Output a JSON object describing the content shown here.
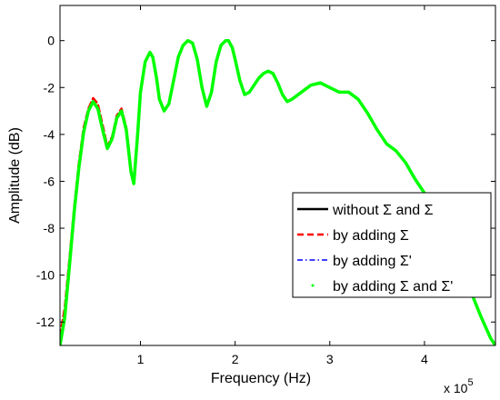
{
  "chart_data": {
    "type": "line",
    "xlabel": "Frequency (Hz)",
    "ylabel": "Amplitude (dB)",
    "x_multiplier": "x 10",
    "x_multiplier_exp": "5",
    "xlim": [
      0.15,
      4.75
    ],
    "ylim": [
      -13,
      1.5
    ],
    "xticks": [
      1,
      2,
      3,
      4
    ],
    "yticks": [
      0,
      -2,
      -4,
      -6,
      -8,
      -10,
      -12
    ],
    "grid": false,
    "legend_position": "lower-right",
    "colors": {
      "black": "#000000",
      "red": "#ff0000",
      "blue": "#0000ff",
      "green": "#00ff00"
    },
    "series": [
      {
        "name": "without Σ and Σ",
        "style": "solid",
        "color": "#000000",
        "x": [
          0.15,
          0.2,
          0.25,
          0.3,
          0.35,
          0.4,
          0.45,
          0.5,
          0.55,
          0.6,
          0.65,
          0.7,
          0.75,
          0.8,
          0.85,
          0.9,
          0.93,
          0.97,
          1.0,
          1.05,
          1.1,
          1.13,
          1.17,
          1.2,
          1.25,
          1.3,
          1.35,
          1.4,
          1.45,
          1.5,
          1.55,
          1.6,
          1.65,
          1.7,
          1.75,
          1.8,
          1.85,
          1.9,
          1.93,
          1.97,
          2.0,
          2.05,
          2.1,
          2.15,
          2.2,
          2.25,
          2.3,
          2.35,
          2.4,
          2.45,
          2.5,
          2.55,
          2.6,
          2.7,
          2.8,
          2.9,
          3.0,
          3.1,
          3.2,
          3.3,
          3.4,
          3.5,
          3.6,
          3.7,
          3.8,
          3.9,
          4.0,
          4.1,
          4.2,
          4.3,
          4.4,
          4.5,
          4.6,
          4.7,
          4.75
        ],
        "y": [
          -13.0,
          -11.8,
          -9.6,
          -7.3,
          -5.4,
          -3.9,
          -3.0,
          -2.6,
          -2.9,
          -3.8,
          -4.6,
          -4.2,
          -3.3,
          -3.0,
          -3.8,
          -5.6,
          -6.1,
          -4.0,
          -2.2,
          -0.9,
          -0.5,
          -0.7,
          -1.6,
          -2.5,
          -3.0,
          -2.7,
          -1.7,
          -0.7,
          -0.2,
          0.0,
          -0.1,
          -0.8,
          -2.0,
          -2.8,
          -2.2,
          -0.9,
          -0.2,
          0.0,
          0.0,
          -0.3,
          -0.8,
          -1.7,
          -2.3,
          -2.2,
          -1.9,
          -1.6,
          -1.4,
          -1.3,
          -1.4,
          -1.8,
          -2.3,
          -2.6,
          -2.5,
          -2.2,
          -1.9,
          -1.8,
          -2.0,
          -2.2,
          -2.2,
          -2.5,
          -3.1,
          -3.8,
          -4.4,
          -4.7,
          -5.2,
          -5.9,
          -6.5,
          -7.0,
          -7.8,
          -8.8,
          -9.8,
          -10.8,
          -11.8,
          -12.7,
          -13.0
        ]
      },
      {
        "name": "by adding Σ",
        "style": "dashed",
        "color": "#ff0000",
        "x": [
          0.15,
          0.2,
          0.25,
          0.3,
          0.35,
          0.4,
          0.45,
          0.5,
          0.55,
          0.6,
          0.65,
          0.7,
          0.75,
          0.8,
          0.85,
          0.9,
          0.93,
          0.97,
          1.0
        ],
        "y": [
          -12.6,
          -11.4,
          -9.3,
          -7.1,
          -5.2,
          -3.7,
          -2.9,
          -2.45,
          -2.7,
          -3.6,
          -4.5,
          -4.1,
          -3.2,
          -2.9,
          -3.7,
          -5.5,
          -6.1,
          -4.0,
          -2.2
        ]
      },
      {
        "name": "by adding Σ'",
        "style": "dashdot",
        "color": "#0000ff",
        "x": [],
        "y": []
      },
      {
        "name": "by adding Σ and Σ'",
        "style": "dotted",
        "color": "#00ff00",
        "x": [
          0.15,
          0.2,
          0.25,
          0.3,
          0.35,
          0.4,
          0.45,
          0.5,
          0.55,
          0.6,
          0.65,
          0.7,
          0.75,
          0.8,
          0.85,
          0.9,
          0.93,
          0.97,
          1.0,
          1.05,
          1.1,
          1.13,
          1.17,
          1.2,
          1.25,
          1.3,
          1.35,
          1.4,
          1.45,
          1.5,
          1.55,
          1.6,
          1.65,
          1.7,
          1.75,
          1.8,
          1.85,
          1.9,
          1.93,
          1.97,
          2.0,
          2.05,
          2.1,
          2.15,
          2.2,
          2.25,
          2.3,
          2.35,
          2.4,
          2.45,
          2.5,
          2.55,
          2.6,
          2.7,
          2.8,
          2.9,
          3.0,
          3.1,
          3.2,
          3.3,
          3.4,
          3.5,
          3.6,
          3.7,
          3.8,
          3.9,
          4.0,
          4.1,
          4.2,
          4.3,
          4.4,
          4.5,
          4.6,
          4.7,
          4.75
        ],
        "y": [
          -13.0,
          -11.8,
          -9.6,
          -7.3,
          -5.4,
          -3.9,
          -3.0,
          -2.6,
          -2.9,
          -3.8,
          -4.6,
          -4.2,
          -3.3,
          -3.0,
          -3.8,
          -5.6,
          -6.1,
          -4.0,
          -2.2,
          -0.9,
          -0.5,
          -0.7,
          -1.6,
          -2.5,
          -3.0,
          -2.7,
          -1.7,
          -0.7,
          -0.2,
          0.0,
          -0.1,
          -0.8,
          -2.0,
          -2.8,
          -2.2,
          -0.9,
          -0.2,
          0.0,
          0.0,
          -0.3,
          -0.8,
          -1.7,
          -2.3,
          -2.2,
          -1.9,
          -1.6,
          -1.4,
          -1.3,
          -1.4,
          -1.8,
          -2.3,
          -2.6,
          -2.5,
          -2.2,
          -1.9,
          -1.8,
          -2.0,
          -2.2,
          -2.2,
          -2.5,
          -3.1,
          -3.8,
          -4.4,
          -4.7,
          -5.2,
          -5.9,
          -6.5,
          -7.0,
          -7.8,
          -8.8,
          -9.8,
          -10.8,
          -11.8,
          -12.7,
          -13.0
        ]
      }
    ],
    "legend": [
      "without Σ and Σ",
      "by adding Σ",
      "by adding Σ'",
      "by adding Σ and Σ'"
    ]
  }
}
